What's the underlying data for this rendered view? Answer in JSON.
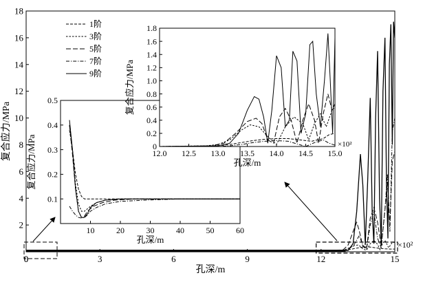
{
  "chart_data": [
    {
      "id": "main",
      "type": "line",
      "title": "",
      "xlabel": "孔深/m",
      "ylabel": "复合应力/MPa",
      "xlim": [
        0,
        15
      ],
      "ylim": [
        0,
        18
      ],
      "x_ticks": [
        0,
        3,
        6,
        9,
        12,
        15
      ],
      "y_ticks": [
        2,
        4,
        6,
        8,
        10,
        12,
        14,
        16,
        18
      ],
      "x_scale_note": "×10²",
      "legend_position": "top-left",
      "series": [
        {
          "name": "1阶",
          "dash": "dash",
          "x": [
            0,
            11.8,
            12.8,
            13.0,
            13.2,
            13.4,
            13.6,
            13.8,
            14.0,
            14.2,
            14.4,
            14.6,
            14.8,
            15.0
          ],
          "y": [
            0.1,
            0.1,
            0.1,
            0.12,
            0.18,
            0.25,
            0.32,
            0.36,
            0.35,
            0.3,
            0.25,
            0.22,
            0.2,
            0.2
          ]
        },
        {
          "name": "3阶",
          "dash": "dash-fine",
          "x": [
            0,
            12.6,
            12.9,
            13.1,
            13.3,
            13.5,
            13.6,
            13.7,
            13.85,
            14.0,
            14.15,
            14.3,
            14.4,
            14.5,
            14.6,
            14.75,
            14.9,
            15.0
          ],
          "y": [
            0.1,
            0.1,
            0.12,
            0.25,
            0.45,
            0.5,
            0.4,
            0.2,
            0.12,
            0.6,
            0.85,
            0.55,
            0.15,
            0.6,
            0.85,
            0.3,
            0.7,
            0.7
          ]
        },
        {
          "name": "5阶",
          "dash": "dash-long",
          "x": [
            0,
            12.6,
            12.9,
            13.1,
            13.3,
            13.45,
            13.55,
            13.7,
            13.85,
            14.0,
            14.15,
            14.3,
            14.45,
            14.6,
            14.7,
            14.8,
            14.9,
            15.0
          ],
          "y": [
            0.1,
            0.1,
            0.15,
            0.5,
            1.5,
            2.2,
            1.6,
            0.4,
            0.2,
            2.5,
            3.3,
            2.2,
            0.4,
            3.1,
            5.2,
            2.0,
            6.8,
            7.5
          ]
        },
        {
          "name": "7阶",
          "dash": "dash-dot",
          "x": [
            0,
            13.0,
            13.3,
            13.55,
            13.7,
            13.85,
            14.0,
            14.15,
            14.3,
            14.45,
            14.6,
            14.7,
            14.8,
            14.9,
            15.0
          ],
          "y": [
            0.1,
            0.1,
            0.4,
            1.2,
            0.5,
            0.2,
            2.0,
            3.0,
            1.0,
            0.3,
            3.2,
            5.8,
            1.5,
            9.0,
            10.0
          ]
        },
        {
          "name": "9阶",
          "dash": "solid",
          "x": [
            0,
            13.1,
            13.3,
            13.45,
            13.6,
            13.7,
            13.8,
            13.9,
            14.0,
            14.08,
            14.15,
            14.22,
            14.3,
            14.38,
            14.45,
            14.52,
            14.6,
            14.66,
            14.72,
            14.78,
            14.84,
            14.9,
            14.95,
            15.0
          ],
          "y": [
            0.1,
            0.1,
            0.6,
            3.0,
            7.3,
            5.0,
            0.5,
            5.5,
            11.5,
            3.0,
            0.6,
            10.0,
            15.0,
            4.0,
            0.6,
            12.0,
            16.0,
            5.0,
            1.0,
            14.0,
            17.0,
            8.0,
            17.2,
            16.0
          ]
        }
      ]
    },
    {
      "id": "inset_left",
      "type": "line",
      "xlabel": "孔深/m",
      "ylabel": "复合应力/MPa",
      "xlim": [
        0,
        60
      ],
      "ylim": [
        0,
        0.5
      ],
      "x_ticks": [
        10,
        20,
        30,
        40,
        50,
        60
      ],
      "y_ticks": [
        0.1,
        0.2,
        0.3,
        0.4,
        0.5
      ],
      "series": [
        {
          "name": "1阶",
          "dash": "dash",
          "x": [
            3,
            4,
            5,
            6,
            7,
            8,
            10,
            15,
            20,
            30,
            60
          ],
          "y": [
            0.38,
            0.3,
            0.2,
            0.14,
            0.11,
            0.1,
            0.1,
            0.1,
            0.1,
            0.1,
            0.1
          ]
        },
        {
          "name": "3阶",
          "dash": "dash-fine",
          "x": [
            3,
            4,
            5,
            6,
            7,
            8,
            10,
            12,
            15,
            20,
            30,
            60
          ],
          "y": [
            0.4,
            0.3,
            0.16,
            0.08,
            0.05,
            0.05,
            0.07,
            0.085,
            0.095,
            0.1,
            0.1,
            0.1
          ]
        },
        {
          "name": "5阶",
          "dash": "dash-long",
          "x": [
            3,
            4,
            5,
            6,
            7,
            8,
            9,
            11,
            14,
            18,
            25,
            35,
            60
          ],
          "y": [
            0.4,
            0.28,
            0.14,
            0.05,
            0.025,
            0.03,
            0.05,
            0.07,
            0.085,
            0.095,
            0.1,
            0.1,
            0.1
          ]
        },
        {
          "name": "7阶",
          "dash": "dash-dot",
          "x": [
            3,
            4,
            5,
            6,
            7,
            8,
            9,
            10,
            12,
            15,
            20,
            28,
            40,
            60
          ],
          "y": [
            0.07,
            0.05,
            0.035,
            0.025,
            0.022,
            0.025,
            0.035,
            0.05,
            0.065,
            0.08,
            0.09,
            0.095,
            0.1,
            0.1
          ]
        },
        {
          "name": "9阶",
          "dash": "solid",
          "x": [
            3,
            4,
            5,
            6,
            7,
            8,
            9,
            10,
            12,
            15,
            20,
            30,
            60
          ],
          "y": [
            0.42,
            0.3,
            0.14,
            0.05,
            0.025,
            0.025,
            0.04,
            0.065,
            0.085,
            0.095,
            0.1,
            0.1,
            0.1
          ]
        }
      ]
    },
    {
      "id": "inset_right",
      "type": "line",
      "xlabel": "孔深/m",
      "ylabel": "复合应力/MPa",
      "xlim": [
        12,
        15
      ],
      "ylim": [
        0,
        1.8
      ],
      "x_ticks": [
        12.0,
        12.5,
        13.0,
        13.5,
        14.0,
        14.5,
        15.0
      ],
      "x_tick_labels": [
        "12.0",
        "12.5",
        "13.0",
        "13.5",
        "14.0",
        "14.5",
        "15.0"
      ],
      "y_ticks": [
        0,
        0.2,
        0.4,
        0.6,
        0.8,
        1.0,
        1.2,
        1.4,
        1.6,
        1.8
      ],
      "y_tick_labels": [
        "0",
        "0.2",
        "0.4",
        "0.6",
        "0.8",
        "1.0",
        "1.2",
        "1.4",
        "1.6",
        "1.8"
      ],
      "x_scale_note": "×10²",
      "series": [
        {
          "name": "1阶",
          "dash": "dash",
          "x": [
            12,
            12.8,
            13.0,
            13.2,
            13.4,
            13.6,
            13.8,
            14.0,
            14.2,
            14.4,
            14.6,
            14.8,
            14.9,
            15.0
          ],
          "y": [
            0.0,
            0.005,
            0.01,
            0.03,
            0.06,
            0.09,
            0.11,
            0.12,
            0.12,
            0.1,
            0.08,
            0.12,
            0.18,
            0.2
          ]
        },
        {
          "name": "3阶",
          "dash": "dash-fine",
          "x": [
            12,
            12.8,
            13.0,
            13.2,
            13.4,
            13.55,
            13.7,
            13.85,
            14.0,
            14.15,
            14.3,
            14.45,
            14.55,
            14.65,
            14.75,
            14.85,
            14.95,
            15.0
          ],
          "y": [
            0.0,
            0.01,
            0.03,
            0.1,
            0.25,
            0.33,
            0.3,
            0.15,
            0.03,
            0.3,
            0.45,
            0.35,
            0.1,
            0.35,
            0.5,
            0.3,
            0.55,
            0.6
          ]
        },
        {
          "name": "5阶",
          "dash": "dash-long",
          "x": [
            12,
            12.9,
            13.1,
            13.3,
            13.5,
            13.65,
            13.75,
            13.85,
            13.95,
            14.05,
            14.15,
            14.25,
            14.35,
            14.45,
            14.55,
            14.65,
            14.72,
            14.8,
            14.88,
            14.95,
            15.0
          ],
          "y": [
            0.0,
            0.01,
            0.05,
            0.2,
            0.38,
            0.43,
            0.35,
            0.1,
            0.05,
            0.45,
            0.58,
            0.4,
            0.05,
            0.4,
            0.65,
            0.4,
            0.05,
            0.5,
            0.8,
            0.55,
            0.65
          ]
        },
        {
          "name": "7阶",
          "dash": "dash-dot",
          "x": [
            12,
            13.0,
            13.2,
            13.4,
            13.6,
            13.8,
            14.0,
            14.2,
            14.35,
            14.5,
            14.65,
            14.8,
            14.9,
            15.0
          ],
          "y": [
            0.0,
            0.0,
            0.01,
            0.03,
            0.06,
            0.08,
            0.09,
            0.08,
            0.04,
            0.0,
            0.06,
            0.1,
            0.05,
            0.02
          ]
        },
        {
          "name": "9阶",
          "dash": "solid",
          "x": [
            12,
            13.0,
            13.2,
            13.35,
            13.5,
            13.62,
            13.7,
            13.78,
            13.85,
            13.92,
            14.0,
            14.08,
            14.15,
            14.22,
            14.28,
            14.35,
            14.42,
            14.5,
            14.57,
            14.62,
            14.68,
            14.75,
            14.82,
            14.88,
            14.92,
            14.96,
            15.0
          ],
          "y": [
            0.0,
            0.01,
            0.05,
            0.2,
            0.55,
            0.76,
            0.72,
            0.45,
            0.05,
            0.55,
            1.38,
            1.2,
            0.3,
            0.4,
            1.45,
            1.3,
            0.2,
            0.5,
            1.55,
            1.6,
            0.8,
            0.3,
            1.0,
            1.72,
            1.0,
            0.2,
            1.65
          ]
        }
      ]
    }
  ]
}
